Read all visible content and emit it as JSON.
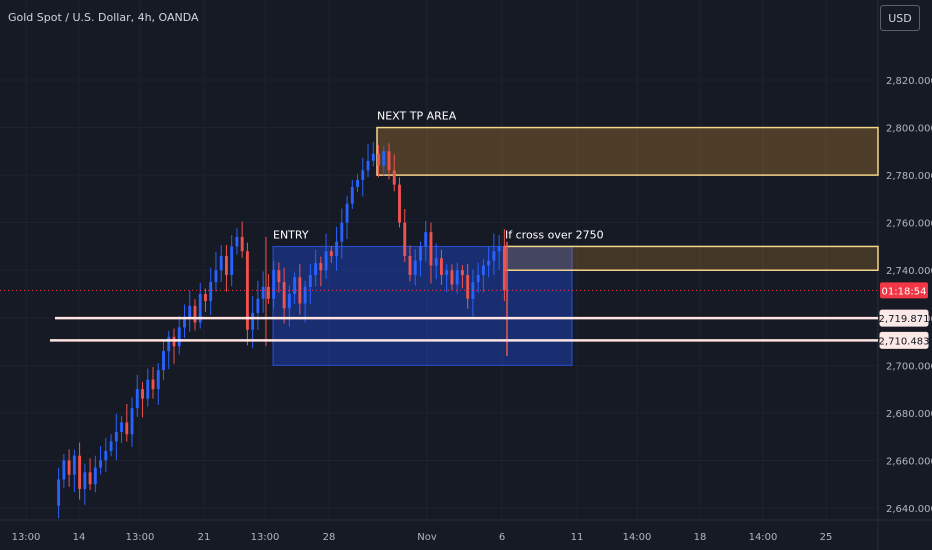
{
  "header": {
    "title": "Gold Spot / U.S. Dollar, 4h, OANDA",
    "currency_button": "USD"
  },
  "colors": {
    "background": "#161a25",
    "grid": "#1f2330",
    "axis_text": "#b2b5be",
    "up_candle": "#2962ff",
    "down_candle": "#ef5350",
    "entry_box": "#1e3fae",
    "tp_box": "#c68a2e",
    "box_border": "#f5d58a",
    "line": "#ffe4e1",
    "current_price": "#f23645"
  },
  "chart_data": {
    "type": "candlestick",
    "title": "Gold Spot / U.S. Dollar, 4h, OANDA",
    "ylim": [
      2635,
      2845
    ],
    "y_ticks": [
      2640,
      2660,
      2680,
      2700,
      2720,
      2740,
      2760,
      2780,
      2800,
      2820
    ],
    "y_tick_labels": [
      "2,640.000",
      "2,660.000",
      "2,680.000",
      "2,700.000",
      "2,720.000",
      "2,740.000",
      "2,760.000",
      "2,780.000",
      "2,800.000",
      "2,820.000"
    ],
    "x_tick_labels": [
      "13:00",
      "14",
      "13:00",
      "21",
      "13:00",
      "28",
      "Nov",
      "6",
      "11",
      "14:00",
      "18",
      "14:00",
      "25"
    ],
    "grid": true,
    "price_labels": [
      {
        "text": "01:18:54",
        "kind": "countdown"
      },
      {
        "text": "2,719.871",
        "kind": "line"
      },
      {
        "text": "2,710.483",
        "kind": "line"
      }
    ],
    "horizontal_lines": [
      {
        "price": 2719.871
      },
      {
        "price": 2710.483
      }
    ],
    "current_price": 2731.5,
    "zones": [
      {
        "label": "ENTRY",
        "top": 2750,
        "bottom": 2700,
        "kind": "entry"
      },
      {
        "label": "NEXT TP AREA",
        "top": 2800,
        "bottom": 2780,
        "kind": "target"
      },
      {
        "label": "If cross over 2750",
        "top": 2750,
        "bottom": 2740,
        "kind": "condition"
      }
    ],
    "price_path": [
      2641,
      2652,
      2660,
      2654,
      2662,
      2648,
      2655,
      2650,
      2657,
      2660,
      2664,
      2668,
      2672,
      2676,
      2671,
      2682,
      2690,
      2686,
      2694,
      2690,
      2698,
      2706,
      2712,
      2708,
      2716,
      2720,
      2725,
      2718,
      2730,
      2727,
      2735,
      2740,
      2746,
      2738,
      2750,
      2754,
      2748,
      2715,
      2722,
      2728,
      2733,
      2728,
      2740,
      2735,
      2724,
      2730,
      2737,
      2726,
      2733,
      2738,
      2743,
      2740,
      2748,
      2746,
      2752,
      2760,
      2768,
      2775,
      2778,
      2782,
      2786,
      2789,
      2784,
      2790,
      2782,
      2776,
      2760,
      2746,
      2738,
      2744,
      2750,
      2756,
      2742,
      2745,
      2738,
      2740,
      2734,
      2740,
      2738,
      2728,
      2735,
      2738,
      2742,
      2744,
      2748,
      2750,
      2731.5
    ]
  }
}
